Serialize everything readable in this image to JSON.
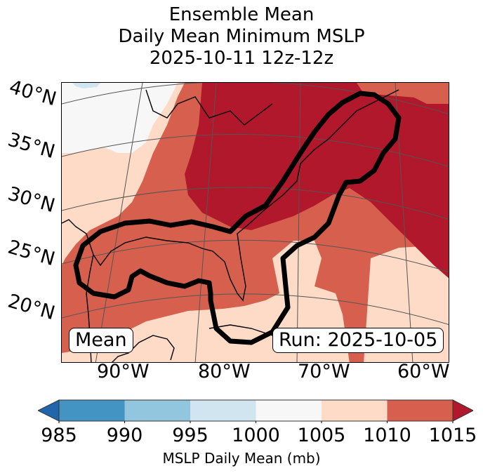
{
  "title": {
    "line1": "Ensemble Mean",
    "line2": "Daily Mean Minimum MSLP",
    "line3": "2025-10-11 12z-12z"
  },
  "map": {
    "lat_labels": [
      "40°N",
      "35°N",
      "30°N",
      "25°N",
      "20°N"
    ],
    "lon_labels": [
      "90°W",
      "80°W",
      "70°W",
      "60°W"
    ],
    "mean_box": "Mean",
    "run_box": "Run: 2025-10-05",
    "contour_description": "Thick black contour enclosing Gulf of Mexico, Florida, and US East Coast to Nova Scotia"
  },
  "colorbar": {
    "label": "MSLP Daily Mean (mb)",
    "ticks": [
      "985",
      "990",
      "995",
      "1000",
      "1005",
      "1010",
      "1015"
    ],
    "bins": [
      {
        "range": "<985",
        "color": "#2166ac"
      },
      {
        "range": "985-990",
        "color": "#4393c3"
      },
      {
        "range": "990-995",
        "color": "#92c5de"
      },
      {
        "range": "995-1000",
        "color": "#d1e5f0"
      },
      {
        "range": "1000-1005",
        "color": "#f7f7f7"
      },
      {
        "range": "1005-1010",
        "color": "#fddbc7"
      },
      {
        "range": "1010-1015",
        "color": "#d6604d"
      },
      {
        "range": ">1015",
        "color": "#b2182b"
      }
    ],
    "extend": "both"
  }
}
